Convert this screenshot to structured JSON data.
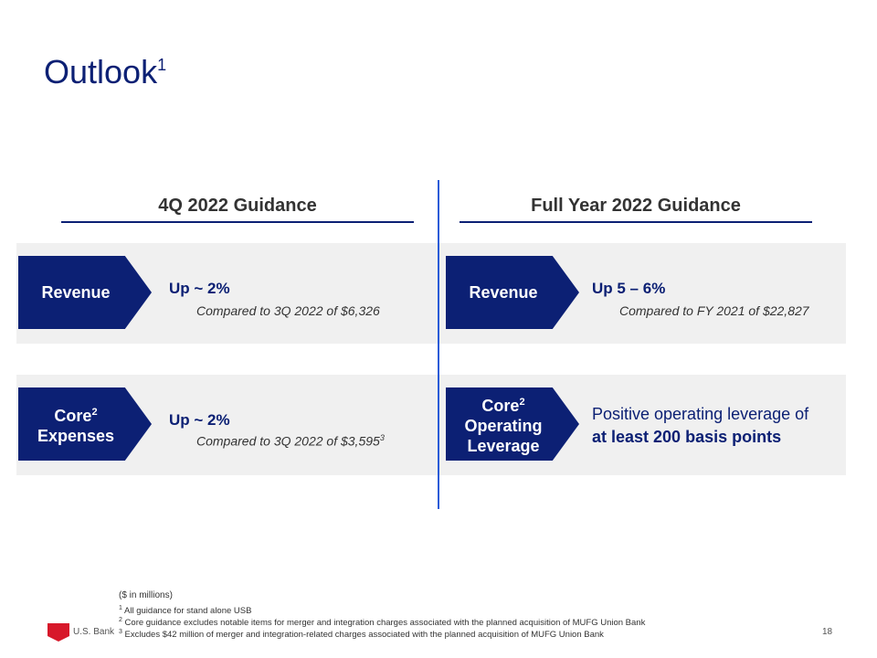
{
  "header": {
    "title": "Outlook",
    "title_sup": "1"
  },
  "columns": [
    {
      "heading": "4Q 2022 Guidance",
      "rows": [
        {
          "label": {
            "main": "Revenue"
          },
          "headline": "Up ~ 2%",
          "detail": "Compared to 3Q 2022 of $6,326"
        },
        {
          "label": {
            "main": "Core",
            "sup": "2",
            "rest": "Expenses"
          },
          "headline": "Up ~ 2%",
          "detail": "Compared to 3Q 2022 of $3,595",
          "detail_sup": "3"
        }
      ]
    },
    {
      "heading": "Full Year 2022 Guidance",
      "rows": [
        {
          "label": {
            "main": "Revenue"
          },
          "headline": "Up 5 – 6%",
          "detail": "Compared to FY 2021 of $22,827"
        },
        {
          "label": {
            "main": "Core",
            "sup": "2",
            "rest": "Operating Leverage"
          },
          "text": "Positive operating leverage of",
          "text_bold": "at least 200 basis points"
        }
      ]
    }
  ],
  "footer": {
    "units": "($ in millions)",
    "notes": [
      {
        "num": "1",
        "text": "All guidance for stand alone USB"
      },
      {
        "num": "2",
        "text": "Core guidance excludes notable items for merger and integration charges associated with the planned acquisition of MUFG Union Bank"
      },
      {
        "num": "3",
        "text": "Excludes $42 million of merger and integration-related charges associated with the planned acquisition of MUFG Union Bank"
      }
    ],
    "logo": "U.S. Bank",
    "page": "18"
  }
}
